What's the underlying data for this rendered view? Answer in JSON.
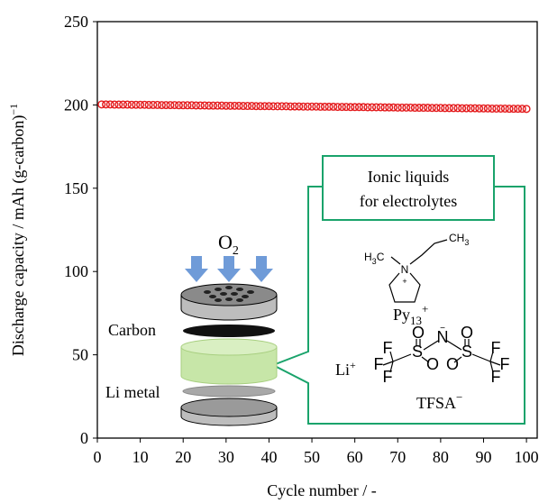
{
  "chart_data": {
    "type": "scatter",
    "xlabel": "Cycle number / -",
    "ylabel": "Discharge capacity / mAh (g-carbon)",
    "ylabel_sup": "−1",
    "x": [
      1,
      2,
      3,
      4,
      5,
      6,
      7,
      8,
      9,
      10,
      11,
      12,
      13,
      14,
      15,
      16,
      17,
      18,
      19,
      20,
      21,
      22,
      23,
      24,
      25,
      26,
      27,
      28,
      29,
      30,
      31,
      32,
      33,
      34,
      35,
      36,
      37,
      38,
      39,
      40,
      41,
      42,
      43,
      44,
      45,
      46,
      47,
      48,
      49,
      50,
      51,
      52,
      53,
      54,
      55,
      56,
      57,
      58,
      59,
      60,
      61,
      62,
      63,
      64,
      65,
      66,
      67,
      68,
      69,
      70,
      71,
      72,
      73,
      74,
      75,
      76,
      77,
      78,
      79,
      80,
      81,
      82,
      83,
      84,
      85,
      86,
      87,
      88,
      89,
      90,
      91,
      92,
      93,
      94,
      95,
      96,
      97,
      98,
      99,
      100
    ],
    "values": [
      200.3,
      200.3,
      200.3,
      200.2,
      200.2,
      200.2,
      200.2,
      200.1,
      200.1,
      200.1,
      200.1,
      200.0,
      200.0,
      200.0,
      199.9,
      199.9,
      199.9,
      199.9,
      199.8,
      199.8,
      199.8,
      199.8,
      199.7,
      199.7,
      199.7,
      199.6,
      199.6,
      199.6,
      199.6,
      199.5,
      199.5,
      199.5,
      199.5,
      199.4,
      199.4,
      199.4,
      199.3,
      199.3,
      199.3,
      199.3,
      199.2,
      199.2,
      199.2,
      199.2,
      199.1,
      199.1,
      199.1,
      199.0,
      199.0,
      199.0,
      199.0,
      198.9,
      198.9,
      198.9,
      198.9,
      198.8,
      198.8,
      198.8,
      198.7,
      198.7,
      198.7,
      198.7,
      198.6,
      198.6,
      198.6,
      198.6,
      198.5,
      198.5,
      198.5,
      198.4,
      198.4,
      198.4,
      198.4,
      198.3,
      198.3,
      198.3,
      198.3,
      198.2,
      198.2,
      198.2,
      198.1,
      198.1,
      198.1,
      198.1,
      198.0,
      198.0,
      198.0,
      198.0,
      197.9,
      197.9,
      197.9,
      197.8,
      197.8,
      197.8,
      197.8,
      197.7,
      197.7,
      197.7,
      197.7,
      197.6
    ],
    "color": "#e41a1c",
    "xlim": [
      0,
      102.5
    ],
    "xticks": [
      0,
      10,
      20,
      30,
      40,
      50,
      60,
      70,
      80,
      90,
      100
    ],
    "ylim": [
      0,
      250
    ],
    "yticks": [
      0,
      50,
      100,
      150,
      200,
      250
    ]
  },
  "inset": {
    "gas": "O",
    "gas_sub": "2",
    "carbon": "Carbon",
    "li_metal": "Li metal",
    "box_title": [
      "Ionic liquids",
      "for electrolytes"
    ],
    "li": "Li",
    "li_sup": "+",
    "cation": "Py",
    "cation_sub": "13",
    "cation_sup": "+",
    "cation_atoms": {
      "h": "H",
      "h_sub": "3",
      "c": "C",
      "ch": "CH",
      "ch_sub": "3",
      "n": "N",
      "plus": "+"
    },
    "anion": "TFSA",
    "anion_sup": "−",
    "anion_atoms": [
      "F",
      "F",
      "F",
      "O",
      "O",
      "S",
      "N",
      "S",
      "O",
      "O",
      "F",
      "F",
      "F"
    ],
    "anion_charge": "−"
  }
}
